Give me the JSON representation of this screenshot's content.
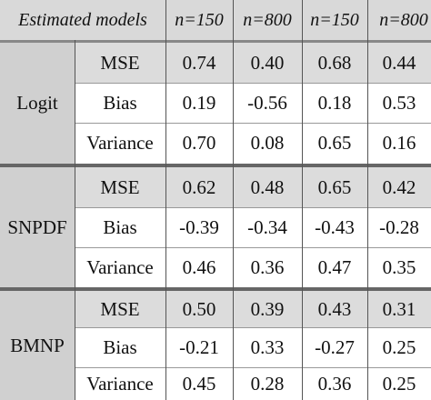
{
  "header": {
    "title": "Estimated models",
    "cols": [
      "n=150",
      "n=800",
      "n=150",
      "n=800"
    ]
  },
  "groups": [
    {
      "model": "Logit",
      "rows": [
        {
          "label": "MSE",
          "values": [
            "0.74",
            "0.40",
            "0.68",
            "0.44"
          ]
        },
        {
          "label": "Bias",
          "values": [
            "0.19",
            "-0.56",
            "0.18",
            "0.53"
          ]
        },
        {
          "label": "Variance",
          "values": [
            "0.70",
            "0.08",
            "0.65",
            "0.16"
          ]
        }
      ]
    },
    {
      "model": "SNPDF",
      "rows": [
        {
          "label": "MSE",
          "values": [
            "0.62",
            "0.48",
            "0.65",
            "0.42"
          ]
        },
        {
          "label": "Bias",
          "values": [
            "-0.39",
            "-0.34",
            "-0.43",
            "-0.28"
          ]
        },
        {
          "label": "Variance",
          "values": [
            "0.46",
            "0.36",
            "0.47",
            "0.35"
          ]
        }
      ]
    },
    {
      "model": "BMNP",
      "rows": [
        {
          "label": "MSE",
          "values": [
            "0.50",
            "0.39",
            "0.43",
            "0.31"
          ]
        },
        {
          "label": "Bias",
          "values": [
            "-0.21",
            "0.33",
            "-0.27",
            "0.25"
          ]
        },
        {
          "label": "Variance",
          "values": [
            "0.45",
            "0.28",
            "0.36",
            "0.25"
          ]
        }
      ]
    }
  ]
}
